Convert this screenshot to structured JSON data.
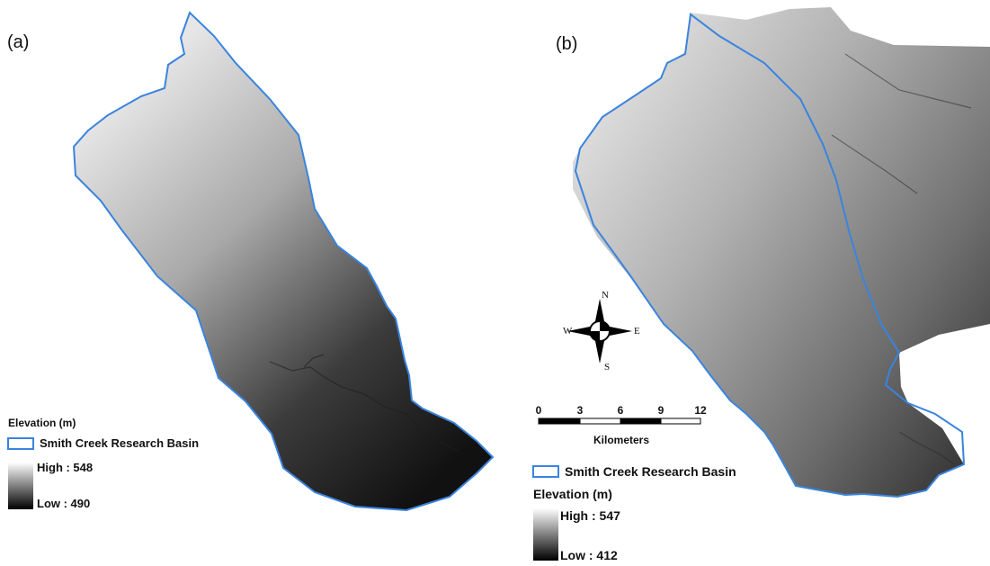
{
  "panels": {
    "a": {
      "label": "(a)",
      "legend": {
        "elevation_title": "Elevation (m)",
        "basin_label": "Smith Creek Research Basin",
        "high_label": "High : 548",
        "low_label": "Low : 490"
      }
    },
    "b": {
      "label": "(b)",
      "legend": {
        "basin_label": "Smith Creek Research Basin",
        "elevation_title": "Elevation (m)",
        "high_label": "High : 547",
        "low_label": "Low : 412"
      },
      "scale_bar": {
        "ticks": [
          "0",
          "3",
          "6",
          "9",
          "12"
        ],
        "unit": "Kilometers"
      },
      "compass": {
        "n": "N",
        "s": "S",
        "e": "E",
        "w": "W"
      }
    }
  },
  "colors": {
    "basin_outline": "#3a84de",
    "ramp_high": "#ffffff",
    "ramp_low": "#000000"
  }
}
